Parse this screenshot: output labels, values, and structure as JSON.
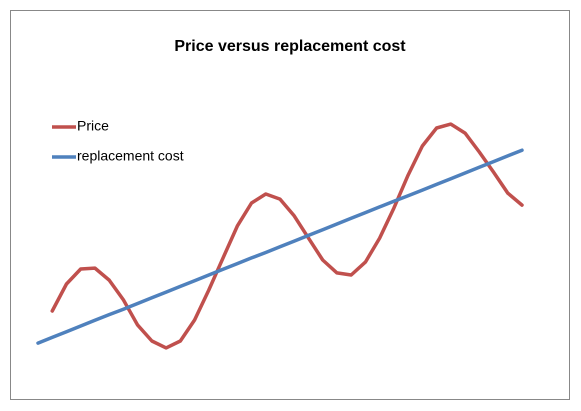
{
  "chart_data": {
    "type": "line",
    "title": "Price versus replacement cost",
    "x": [
      0,
      1,
      2,
      3,
      4,
      5,
      6,
      7,
      8,
      9,
      10,
      11,
      12,
      13,
      14,
      15,
      16,
      17,
      18,
      19,
      20,
      21,
      22,
      23,
      24,
      25,
      26,
      27,
      28,
      29,
      30,
      31,
      32,
      33,
      34
    ],
    "xlim": [
      0,
      34
    ],
    "ylim": [
      0,
      100
    ],
    "legend": "top-left",
    "series": [
      {
        "name": "Price",
        "color": "#c0504d",
        "values": [
          null,
          23,
          32,
          37,
          37.3,
          33.3,
          26.7,
          18.3,
          13,
          10.7,
          13,
          20,
          30,
          40.7,
          51.3,
          59,
          62,
          60.3,
          54.7,
          47.3,
          40,
          35.7,
          35,
          39.3,
          47.3,
          57.3,
          68.3,
          78,
          84,
          85.3,
          82.3,
          76,
          69.3,
          62.3,
          58.3
        ]
      },
      {
        "name": "replacement cost",
        "color": "#4f81bd",
        "values": [
          12.3,
          14.2,
          16.1,
          18,
          19.9,
          21.8,
          23.6,
          25.5,
          27.4,
          29.3,
          31.2,
          33.1,
          35,
          36.9,
          38.8,
          40.7,
          42.5,
          44.4,
          46.3,
          48.2,
          50.1,
          52,
          53.9,
          55.8,
          57.7,
          59.6,
          61.4,
          63.3,
          65.2,
          67.1,
          69,
          70.9,
          72.8,
          74.7,
          76.6
        ]
      }
    ]
  }
}
